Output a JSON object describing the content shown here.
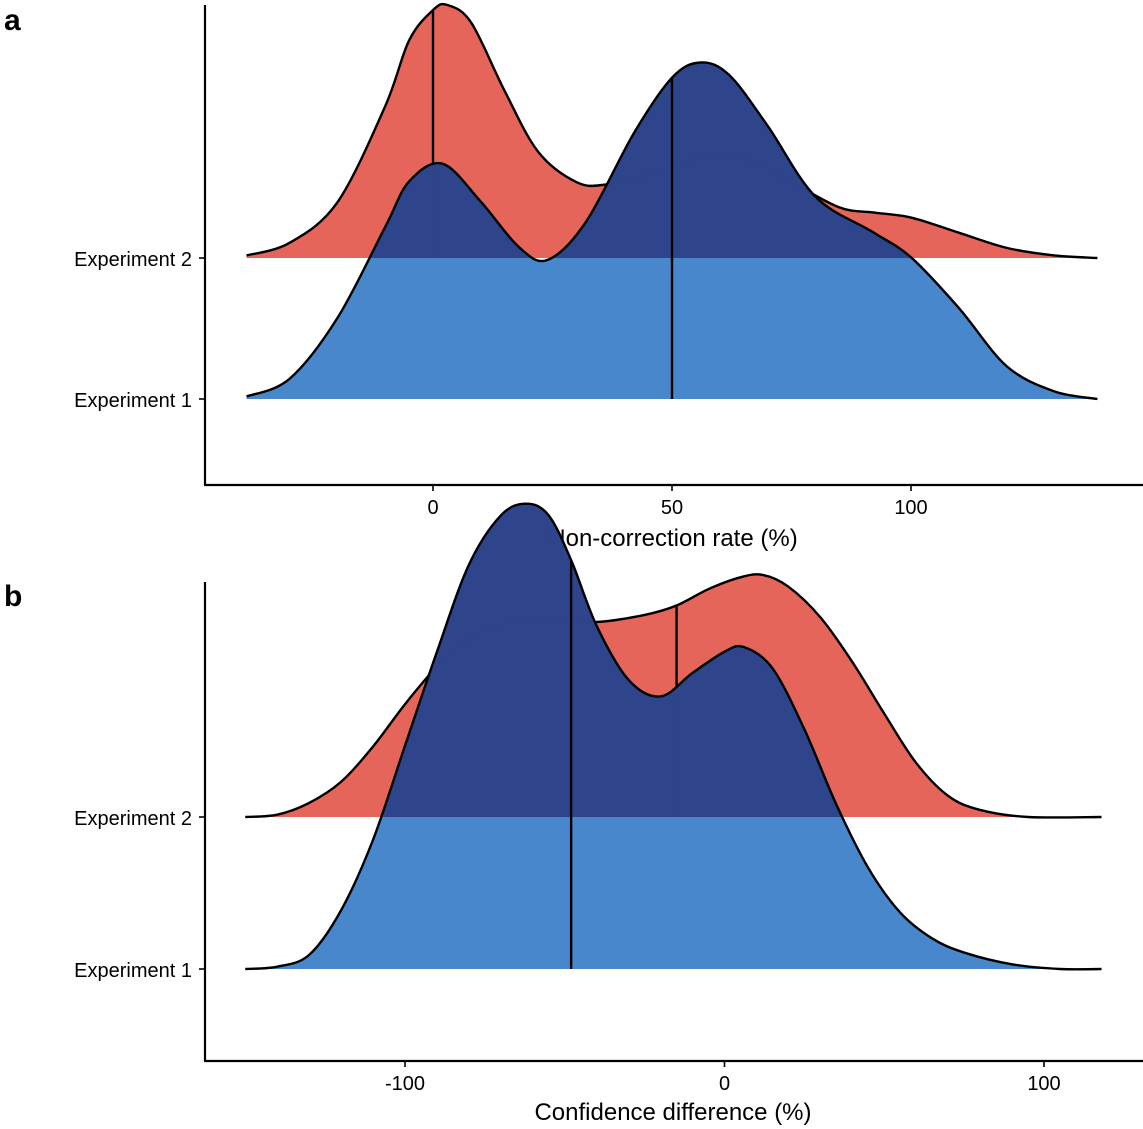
{
  "chart_data": [
    {
      "type": "ridgeline",
      "panel_label": "a",
      "xlabel": "Non-correction rate (%)",
      "x_ticks": [
        0,
        50,
        100
      ],
      "xlim": [
        -39.5,
        139.5
      ],
      "categories": [
        "Experiment 2",
        "Experiment 1"
      ],
      "series": [
        {
          "category": "Experiment 2",
          "color": "#E5655A",
          "median": 0,
          "density": [
            [
              -39,
              0.01
            ],
            [
              -30,
              0.06
            ],
            [
              -20,
              0.22
            ],
            [
              -10,
              0.6
            ],
            [
              -5,
              0.86
            ],
            [
              0,
              0.98
            ],
            [
              3,
              1.0
            ],
            [
              8,
              0.93
            ],
            [
              15,
              0.66
            ],
            [
              22,
              0.42
            ],
            [
              30,
              0.3
            ],
            [
              36,
              0.29
            ],
            [
              45,
              0.33
            ],
            [
              52,
              0.38
            ],
            [
              60,
              0.4
            ],
            [
              67,
              0.38
            ],
            [
              75,
              0.3
            ],
            [
              85,
              0.2
            ],
            [
              92,
              0.18
            ],
            [
              100,
              0.16
            ],
            [
              110,
              0.1
            ],
            [
              120,
              0.04
            ],
            [
              130,
              0.01
            ],
            [
              139,
              0.0
            ]
          ]
        },
        {
          "category": "Experiment 1",
          "color": "#4283C9",
          "median": 50,
          "density": [
            [
              -39,
              0.01
            ],
            [
              -30,
              0.08
            ],
            [
              -20,
              0.32
            ],
            [
              -10,
              0.68
            ],
            [
              -5,
              0.86
            ],
            [
              2,
              0.93
            ],
            [
              10,
              0.78
            ],
            [
              18,
              0.6
            ],
            [
              24,
              0.55
            ],
            [
              32,
              0.7
            ],
            [
              42,
              1.05
            ],
            [
              50,
              1.27
            ],
            [
              56,
              1.33
            ],
            [
              62,
              1.28
            ],
            [
              70,
              1.08
            ],
            [
              80,
              0.8
            ],
            [
              92,
              0.66
            ],
            [
              100,
              0.56
            ],
            [
              110,
              0.36
            ],
            [
              120,
              0.13
            ],
            [
              130,
              0.03
            ],
            [
              139,
              0.0
            ]
          ]
        }
      ]
    },
    {
      "type": "ridgeline",
      "panel_label": "b",
      "xlabel": "Confidence difference (%)",
      "x_ticks": [
        -100,
        0,
        100
      ],
      "xlim": [
        -150,
        118
      ],
      "categories": [
        "Experiment 2",
        "Experiment 1"
      ],
      "series": [
        {
          "category": "Experiment 2",
          "color": "#E5655A",
          "median": -15,
          "density": [
            [
              -150,
              0.0
            ],
            [
              -140,
              0.01
            ],
            [
              -130,
              0.06
            ],
            [
              -120,
              0.15
            ],
            [
              -110,
              0.3
            ],
            [
              -100,
              0.48
            ],
            [
              -90,
              0.64
            ],
            [
              -80,
              0.76
            ],
            [
              -70,
              0.82
            ],
            [
              -55,
              0.84
            ],
            [
              -40,
              0.83
            ],
            [
              -25,
              0.86
            ],
            [
              -15,
              0.9
            ],
            [
              -5,
              0.97
            ],
            [
              5,
              1.02
            ],
            [
              12,
              1.03
            ],
            [
              20,
              0.98
            ],
            [
              30,
              0.85
            ],
            [
              40,
              0.66
            ],
            [
              50,
              0.44
            ],
            [
              60,
              0.23
            ],
            [
              70,
              0.09
            ],
            [
              80,
              0.03
            ],
            [
              95,
              0.0
            ],
            [
              118,
              0.0
            ]
          ]
        },
        {
          "category": "Experiment 1",
          "color": "#4283C9",
          "median": -48,
          "density": [
            [
              -150,
              0.0
            ],
            [
              -140,
              0.01
            ],
            [
              -130,
              0.06
            ],
            [
              -120,
              0.25
            ],
            [
              -110,
              0.55
            ],
            [
              -100,
              0.95
            ],
            [
              -90,
              1.35
            ],
            [
              -80,
              1.72
            ],
            [
              -70,
              1.93
            ],
            [
              -62,
              1.98
            ],
            [
              -55,
              1.93
            ],
            [
              -48,
              1.74
            ],
            [
              -40,
              1.46
            ],
            [
              -30,
              1.23
            ],
            [
              -20,
              1.16
            ],
            [
              -10,
              1.26
            ],
            [
              0,
              1.35
            ],
            [
              6,
              1.37
            ],
            [
              15,
              1.28
            ],
            [
              25,
              1.02
            ],
            [
              35,
              0.7
            ],
            [
              45,
              0.43
            ],
            [
              55,
              0.24
            ],
            [
              65,
              0.13
            ],
            [
              75,
              0.07
            ],
            [
              90,
              0.02
            ],
            [
              105,
              0.0
            ],
            [
              118,
              0.0
            ]
          ]
        }
      ]
    }
  ]
}
